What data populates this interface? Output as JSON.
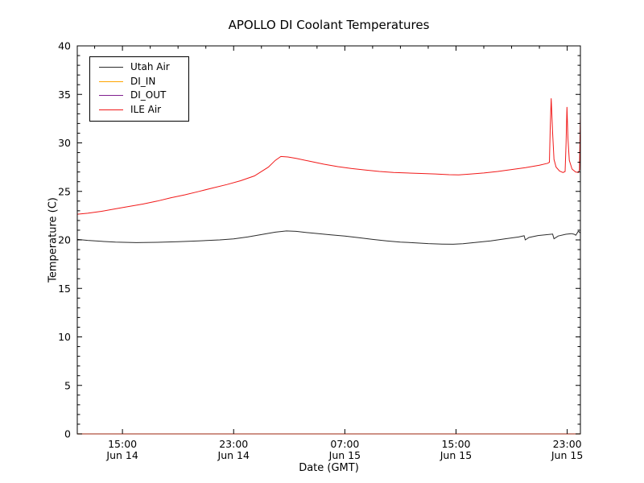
{
  "chart_data": {
    "type": "line",
    "title": "APOLLO DI Coolant Temperatures",
    "xlabel": "Date (GMT)",
    "ylabel": "Temperature (C)",
    "x_unit": "hours since Jun 14 00:00 GMT",
    "xlim": [
      11.75,
      47.95
    ],
    "ylim": [
      0,
      40
    ],
    "grid": false,
    "legend_position": "upper left",
    "axis_color": "#000000",
    "bottom_spine_blend_note": "DI_IN and DI_OUT lie flat at 0 over the bottom spine",
    "x_major_ticks": [
      {
        "x": 15,
        "time": "15:00",
        "date": "Jun 14"
      },
      {
        "x": 23,
        "time": "23:00",
        "date": "Jun 14"
      },
      {
        "x": 31,
        "time": "07:00",
        "date": "Jun 15"
      },
      {
        "x": 39,
        "time": "15:00",
        "date": "Jun 15"
      },
      {
        "x": 47,
        "time": "23:00",
        "date": "Jun 15"
      }
    ],
    "x_minor_step": 2,
    "y_major_ticks": [
      0,
      5,
      10,
      15,
      20,
      25,
      30,
      35,
      40
    ],
    "y_minor_step": 1,
    "series": [
      {
        "name": "Utah Air",
        "color": "#2b2b2b",
        "points": [
          [
            11.75,
            20.05
          ],
          [
            12.5,
            19.95
          ],
          [
            13.5,
            19.85
          ],
          [
            14.5,
            19.78
          ],
          [
            16,
            19.72
          ],
          [
            17.5,
            19.75
          ],
          [
            19,
            19.82
          ],
          [
            20.5,
            19.9
          ],
          [
            22,
            20.0
          ],
          [
            23,
            20.1
          ],
          [
            24,
            20.3
          ],
          [
            25,
            20.55
          ],
          [
            26,
            20.8
          ],
          [
            26.8,
            20.92
          ],
          [
            27.5,
            20.88
          ],
          [
            28.5,
            20.72
          ],
          [
            30,
            20.52
          ],
          [
            31,
            20.4
          ],
          [
            32,
            20.22
          ],
          [
            33,
            20.05
          ],
          [
            34,
            19.9
          ],
          [
            35,
            19.78
          ],
          [
            36,
            19.7
          ],
          [
            37,
            19.62
          ],
          [
            38,
            19.57
          ],
          [
            38.8,
            19.55
          ],
          [
            39.5,
            19.6
          ],
          [
            40.5,
            19.75
          ],
          [
            41.5,
            19.9
          ],
          [
            42.5,
            20.1
          ],
          [
            43.5,
            20.3
          ],
          [
            43.9,
            20.42
          ],
          [
            43.98,
            20.0
          ],
          [
            44.25,
            20.25
          ],
          [
            44.9,
            20.45
          ],
          [
            45.95,
            20.6
          ],
          [
            46.05,
            20.12
          ],
          [
            46.35,
            20.4
          ],
          [
            46.9,
            20.58
          ],
          [
            47.3,
            20.65
          ],
          [
            47.5,
            20.58
          ],
          [
            47.62,
            20.48
          ],
          [
            47.8,
            20.9
          ],
          [
            47.95,
            20.72
          ]
        ]
      },
      {
        "name": "DI_IN",
        "color": "#ffa500",
        "plot_opacity": 0.9,
        "points": [
          [
            11.75,
            0
          ],
          [
            47.95,
            0
          ]
        ]
      },
      {
        "name": "DI_OUT",
        "color": "#80208f",
        "plot_opacity": 0.55,
        "points": [
          [
            11.75,
            0
          ],
          [
            47.95,
            0
          ]
        ]
      },
      {
        "name": "ILE Air",
        "color": "#f11919",
        "points": [
          [
            11.75,
            22.65
          ],
          [
            12.5,
            22.75
          ],
          [
            13.5,
            22.95
          ],
          [
            14.5,
            23.2
          ],
          [
            15.5,
            23.45
          ],
          [
            16.5,
            23.7
          ],
          [
            17.5,
            24.0
          ],
          [
            18.5,
            24.35
          ],
          [
            19.5,
            24.65
          ],
          [
            20.5,
            25.0
          ],
          [
            21.5,
            25.35
          ],
          [
            22.5,
            25.7
          ],
          [
            23.5,
            26.1
          ],
          [
            24.5,
            26.6
          ],
          [
            25.5,
            27.5
          ],
          [
            26.0,
            28.2
          ],
          [
            26.4,
            28.6
          ],
          [
            26.9,
            28.55
          ],
          [
            27.5,
            28.4
          ],
          [
            28.5,
            28.1
          ],
          [
            29.5,
            27.8
          ],
          [
            30.5,
            27.55
          ],
          [
            31.5,
            27.35
          ],
          [
            32.5,
            27.2
          ],
          [
            33.5,
            27.05
          ],
          [
            34.5,
            26.95
          ],
          [
            35.5,
            26.9
          ],
          [
            36.5,
            26.85
          ],
          [
            37.5,
            26.8
          ],
          [
            38.5,
            26.72
          ],
          [
            39.2,
            26.7
          ],
          [
            40,
            26.78
          ],
          [
            41,
            26.9
          ],
          [
            42,
            27.05
          ],
          [
            43,
            27.25
          ],
          [
            44,
            27.45
          ],
          [
            45,
            27.7
          ],
          [
            45.6,
            27.9
          ],
          [
            45.72,
            28.0
          ],
          [
            45.78,
            31.5
          ],
          [
            45.85,
            34.6
          ],
          [
            45.95,
            31.0
          ],
          [
            46.05,
            28.3
          ],
          [
            46.2,
            27.5
          ],
          [
            46.45,
            27.1
          ],
          [
            46.7,
            26.95
          ],
          [
            46.85,
            27.05
          ],
          [
            46.92,
            30.0
          ],
          [
            46.98,
            33.7
          ],
          [
            47.05,
            30.5
          ],
          [
            47.15,
            28.2
          ],
          [
            47.35,
            27.3
          ],
          [
            47.6,
            27.0
          ],
          [
            47.8,
            26.95
          ],
          [
            47.88,
            27.2
          ],
          [
            47.95,
            33.0
          ]
        ]
      }
    ]
  }
}
